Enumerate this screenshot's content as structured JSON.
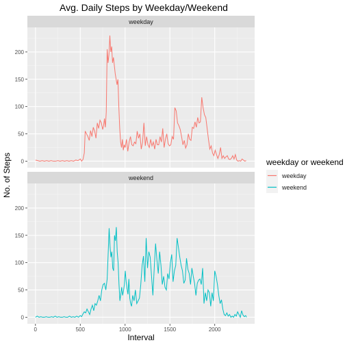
{
  "chart_data": {
    "type": "line",
    "title": "Avg. Daily Steps by Weekday/Weekend",
    "xlabel": "Interval",
    "ylabel": "No. of Steps",
    "xlim": [
      -90,
      2445
    ],
    "ylim": [
      -12,
      245
    ],
    "x_ticks": [
      0,
      500,
      1000,
      1500,
      2000
    ],
    "y_ticks": [
      0,
      50,
      100,
      150,
      200
    ],
    "grid": true,
    "legend": {
      "title": "weekday or weekend",
      "placement": "right"
    },
    "facets": [
      "weekday",
      "weekend"
    ],
    "series": [
      {
        "name": "weekday",
        "color": "#F8766D",
        "points": [
          [
            0,
            2
          ],
          [
            25,
            1
          ],
          [
            50,
            0
          ],
          [
            75,
            1
          ],
          [
            100,
            0
          ],
          [
            125,
            1
          ],
          [
            150,
            0
          ],
          [
            175,
            1
          ],
          [
            200,
            0
          ],
          [
            225,
            0
          ],
          [
            250,
            1
          ],
          [
            275,
            0
          ],
          [
            300,
            1
          ],
          [
            325,
            0
          ],
          [
            350,
            1
          ],
          [
            375,
            0
          ],
          [
            400,
            1
          ],
          [
            425,
            0
          ],
          [
            450,
            2
          ],
          [
            475,
            1
          ],
          [
            500,
            4
          ],
          [
            515,
            0
          ],
          [
            530,
            3
          ],
          [
            545,
            15
          ],
          [
            555,
            55
          ],
          [
            570,
            50
          ],
          [
            585,
            45
          ],
          [
            600,
            38
          ],
          [
            615,
            56
          ],
          [
            630,
            45
          ],
          [
            645,
            62
          ],
          [
            660,
            55
          ],
          [
            675,
            42
          ],
          [
            690,
            70
          ],
          [
            705,
            60
          ],
          [
            720,
            75
          ],
          [
            735,
            70
          ],
          [
            750,
            58
          ],
          [
            760,
            65
          ],
          [
            770,
            78
          ],
          [
            780,
            62
          ],
          [
            790,
            90
          ],
          [
            800,
            205
          ],
          [
            810,
            180
          ],
          [
            820,
            195
          ],
          [
            830,
            230
          ],
          [
            840,
            200
          ],
          [
            850,
            210
          ],
          [
            860,
            180
          ],
          [
            870,
            190
          ],
          [
            880,
            175
          ],
          [
            890,
            160
          ],
          [
            900,
            150
          ],
          [
            910,
            140
          ],
          [
            920,
            150
          ],
          [
            930,
            100
          ],
          [
            940,
            60
          ],
          [
            950,
            35
          ],
          [
            960,
            25
          ],
          [
            970,
            40
          ],
          [
            980,
            20
          ],
          [
            990,
            30
          ],
          [
            1000,
            25
          ],
          [
            1015,
            40
          ],
          [
            1030,
            18
          ],
          [
            1045,
            35
          ],
          [
            1060,
            45
          ],
          [
            1075,
            30
          ],
          [
            1090,
            28
          ],
          [
            1105,
            35
          ],
          [
            1120,
            32
          ],
          [
            1135,
            55
          ],
          [
            1150,
            42
          ],
          [
            1165,
            50
          ],
          [
            1180,
            22
          ],
          [
            1195,
            35
          ],
          [
            1210,
            70
          ],
          [
            1225,
            28
          ],
          [
            1240,
            45
          ],
          [
            1255,
            30
          ],
          [
            1270,
            25
          ],
          [
            1285,
            40
          ],
          [
            1300,
            28
          ],
          [
            1315,
            35
          ],
          [
            1330,
            22
          ],
          [
            1345,
            40
          ],
          [
            1360,
            30
          ],
          [
            1375,
            30
          ],
          [
            1390,
            45
          ],
          [
            1405,
            35
          ],
          [
            1420,
            60
          ],
          [
            1435,
            25
          ],
          [
            1450,
            40
          ],
          [
            1465,
            50
          ],
          [
            1480,
            32
          ],
          [
            1495,
            28
          ],
          [
            1510,
            30
          ],
          [
            1525,
            45
          ],
          [
            1540,
            40
          ],
          [
            1555,
            98
          ],
          [
            1570,
            92
          ],
          [
            1585,
            70
          ],
          [
            1600,
            65
          ],
          [
            1615,
            58
          ],
          [
            1630,
            45
          ],
          [
            1645,
            30
          ],
          [
            1660,
            38
          ],
          [
            1675,
            24
          ],
          [
            1690,
            30
          ],
          [
            1705,
            50
          ],
          [
            1720,
            40
          ],
          [
            1735,
            38
          ],
          [
            1750,
            62
          ],
          [
            1765,
            60
          ],
          [
            1780,
            72
          ],
          [
            1795,
            62
          ],
          [
            1810,
            80
          ],
          [
            1825,
            70
          ],
          [
            1840,
            72
          ],
          [
            1855,
            117
          ],
          [
            1870,
            98
          ],
          [
            1885,
            85
          ],
          [
            1900,
            80
          ],
          [
            1915,
            60
          ],
          [
            1930,
            40
          ],
          [
            1945,
            22
          ],
          [
            1960,
            28
          ],
          [
            1975,
            15
          ],
          [
            1990,
            10
          ],
          [
            2005,
            20
          ],
          [
            2020,
            12
          ],
          [
            2035,
            5
          ],
          [
            2050,
            12
          ],
          [
            2065,
            25
          ],
          [
            2080,
            5
          ],
          [
            2095,
            10
          ],
          [
            2110,
            5
          ],
          [
            2125,
            8
          ],
          [
            2140,
            10
          ],
          [
            2155,
            4
          ],
          [
            2170,
            3
          ],
          [
            2185,
            5
          ],
          [
            2200,
            10
          ],
          [
            2215,
            4
          ],
          [
            2230,
            12
          ],
          [
            2245,
            2
          ],
          [
            2260,
            0
          ],
          [
            2275,
            1
          ],
          [
            2290,
            0
          ],
          [
            2305,
            4
          ],
          [
            2320,
            2
          ],
          [
            2335,
            0
          ],
          [
            2350,
            1
          ]
        ]
      },
      {
        "name": "weekend",
        "color": "#00BFC4",
        "points": [
          [
            0,
            0
          ],
          [
            20,
            2
          ],
          [
            40,
            0
          ],
          [
            60,
            1
          ],
          [
            80,
            0
          ],
          [
            100,
            0
          ],
          [
            120,
            1
          ],
          [
            140,
            0
          ],
          [
            160,
            0
          ],
          [
            180,
            1
          ],
          [
            200,
            0
          ],
          [
            220,
            2
          ],
          [
            240,
            0
          ],
          [
            260,
            1
          ],
          [
            280,
            0
          ],
          [
            300,
            0
          ],
          [
            320,
            1
          ],
          [
            340,
            0
          ],
          [
            360,
            0
          ],
          [
            380,
            2
          ],
          [
            400,
            0
          ],
          [
            420,
            1
          ],
          [
            440,
            0
          ],
          [
            460,
            2
          ],
          [
            480,
            0
          ],
          [
            500,
            3
          ],
          [
            515,
            1
          ],
          [
            530,
            6
          ],
          [
            545,
            10
          ],
          [
            560,
            8
          ],
          [
            575,
            15
          ],
          [
            590,
            10
          ],
          [
            605,
            5
          ],
          [
            620,
            15
          ],
          [
            635,
            22
          ],
          [
            650,
            12
          ],
          [
            665,
            25
          ],
          [
            680,
            22
          ],
          [
            695,
            30
          ],
          [
            710,
            40
          ],
          [
            725,
            30
          ],
          [
            740,
            50
          ],
          [
            755,
            60
          ],
          [
            770,
            62
          ],
          [
            785,
            50
          ],
          [
            800,
            70
          ],
          [
            812,
            120
          ],
          [
            822,
            163
          ],
          [
            832,
            130
          ],
          [
            842,
            110
          ],
          [
            852,
            120
          ],
          [
            862,
            90
          ],
          [
            872,
            85
          ],
          [
            882,
            150
          ],
          [
            892,
            140
          ],
          [
            902,
            165
          ],
          [
            912,
            120
          ],
          [
            922,
            100
          ],
          [
            932,
            60
          ],
          [
            942,
            30
          ],
          [
            952,
            42
          ],
          [
            962,
            55
          ],
          [
            972,
            40
          ],
          [
            982,
            48
          ],
          [
            992,
            60
          ],
          [
            1002,
            85
          ],
          [
            1012,
            65
          ],
          [
            1022,
            52
          ],
          [
            1032,
            42
          ],
          [
            1042,
            70
          ],
          [
            1052,
            35
          ],
          [
            1062,
            25
          ],
          [
            1072,
            20
          ],
          [
            1085,
            40
          ],
          [
            1100,
            30
          ],
          [
            1115,
            50
          ],
          [
            1130,
            25
          ],
          [
            1145,
            30
          ],
          [
            1160,
            35
          ],
          [
            1175,
            60
          ],
          [
            1190,
            95
          ],
          [
            1205,
            112
          ],
          [
            1220,
            65
          ],
          [
            1235,
            145
          ],
          [
            1250,
            90
          ],
          [
            1265,
            120
          ],
          [
            1280,
            110
          ],
          [
            1295,
            75
          ],
          [
            1310,
            40
          ],
          [
            1325,
            90
          ],
          [
            1340,
            135
          ],
          [
            1355,
            105
          ],
          [
            1370,
            80
          ],
          [
            1385,
            120
          ],
          [
            1400,
            95
          ],
          [
            1415,
            60
          ],
          [
            1430,
            75
          ],
          [
            1445,
            55
          ],
          [
            1460,
            50
          ],
          [
            1475,
            80
          ],
          [
            1490,
            70
          ],
          [
            1505,
            100
          ],
          [
            1520,
            115
          ],
          [
            1535,
            65
          ],
          [
            1550,
            85
          ],
          [
            1565,
            95
          ],
          [
            1580,
            145
          ],
          [
            1595,
            128
          ],
          [
            1610,
            110
          ],
          [
            1625,
            95
          ],
          [
            1640,
            85
          ],
          [
            1655,
            62
          ],
          [
            1670,
            68
          ],
          [
            1685,
            108
          ],
          [
            1700,
            88
          ],
          [
            1715,
            80
          ],
          [
            1730,
            60
          ],
          [
            1745,
            90
          ],
          [
            1760,
            75
          ],
          [
            1775,
            62
          ],
          [
            1790,
            40
          ],
          [
            1805,
            62
          ],
          [
            1820,
            68
          ],
          [
            1835,
            70
          ],
          [
            1850,
            60
          ],
          [
            1865,
            90
          ],
          [
            1880,
            25
          ],
          [
            1895,
            45
          ],
          [
            1910,
            30
          ],
          [
            1925,
            50
          ],
          [
            1940,
            45
          ],
          [
            1955,
            20
          ],
          [
            1970,
            45
          ],
          [
            1985,
            30
          ],
          [
            2000,
            85
          ],
          [
            2015,
            75
          ],
          [
            2030,
            60
          ],
          [
            2045,
            40
          ],
          [
            2060,
            25
          ],
          [
            2075,
            32
          ],
          [
            2090,
            15
          ],
          [
            2105,
            5
          ],
          [
            2120,
            3
          ],
          [
            2135,
            8
          ],
          [
            2150,
            2
          ],
          [
            2165,
            5
          ],
          [
            2180,
            0
          ],
          [
            2195,
            2
          ],
          [
            2210,
            0
          ],
          [
            2225,
            5
          ],
          [
            2240,
            2
          ],
          [
            2255,
            10
          ],
          [
            2270,
            5
          ],
          [
            2285,
            0
          ],
          [
            2300,
            12
          ],
          [
            2315,
            4
          ],
          [
            2330,
            1
          ],
          [
            2345,
            3
          ],
          [
            2355,
            0
          ]
        ]
      }
    ]
  }
}
